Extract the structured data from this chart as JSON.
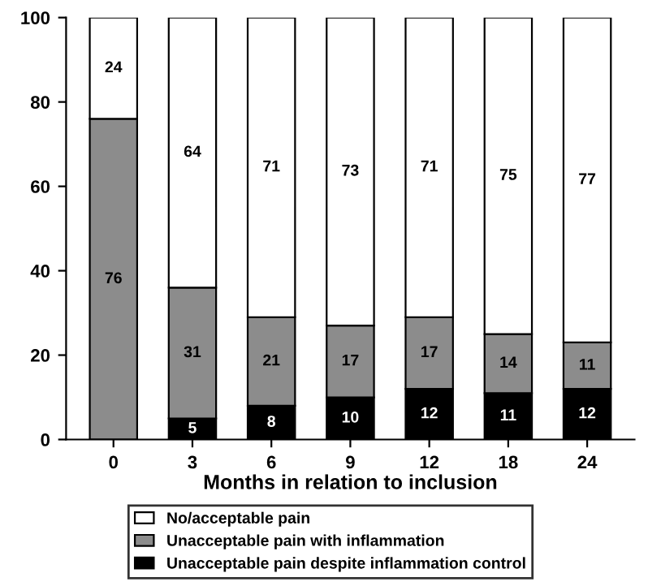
{
  "chart_data": {
    "type": "bar",
    "stacked": true,
    "xlabel": "Months in relation to inclusion",
    "categories": [
      "0",
      "3",
      "6",
      "9",
      "12",
      "18",
      "24"
    ],
    "series": [
      {
        "name": "Unacceptable pain despite inflammation control",
        "color": "#000000",
        "values": [
          0,
          5,
          8,
          10,
          12,
          11,
          12
        ],
        "value_labels": [
          null,
          "5",
          "8",
          "10",
          "12",
          "11",
          "12"
        ]
      },
      {
        "name": "Unacceptable pain with inflammation",
        "color": "#8c8c8c",
        "values": [
          76,
          31,
          21,
          17,
          17,
          14,
          11
        ],
        "value_labels": [
          "76",
          "31",
          "21",
          "17",
          "17",
          "14",
          "11"
        ]
      },
      {
        "name": "No/acceptable pain",
        "color": "#ffffff",
        "values": [
          24,
          64,
          71,
          73,
          71,
          75,
          77
        ],
        "value_labels": [
          "24",
          "64",
          "71",
          "73",
          "71",
          "75",
          "77"
        ]
      }
    ],
    "ylim": [
      0,
      100
    ],
    "yticks": [
      0,
      20,
      40,
      60,
      80,
      100
    ],
    "legend": "bottom",
    "grid": false
  }
}
